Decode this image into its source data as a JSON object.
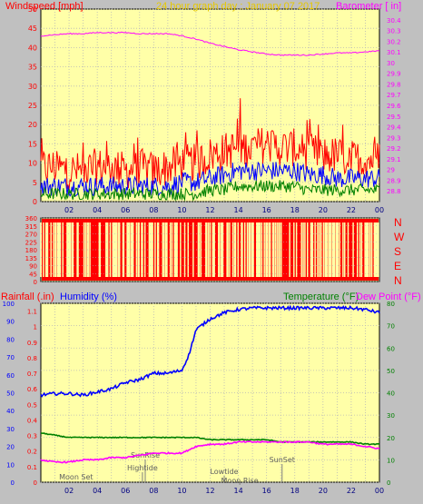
{
  "header": {
    "left_label": "Windspeed [mph]",
    "title": "24 hour graph day : January 07 2017",
    "right_label": "Barometer [ in]",
    "left_color": "#ff0000",
    "title_color": "#ffd800",
    "right_color": "#ff00ff"
  },
  "compass_labels": [
    "N",
    "W",
    "S",
    "E",
    "N"
  ],
  "bottom_header": {
    "rainfall_label": "Rainfall (.in)",
    "humidity_label": "Humidity (%)",
    "temperature_label": "Temperature (°F)",
    "dewpoint_label": "Dew Point (°F)"
  },
  "chart_data": [
    {
      "type": "line",
      "title": "24 hour graph day : January 07 2017",
      "x_ticks": [
        "02",
        "04",
        "06",
        "08",
        "10",
        "12",
        "14",
        "16",
        "18",
        "20",
        "22",
        "00"
      ],
      "x_range": [
        0,
        24
      ],
      "y_left": {
        "label": "Windspeed [mph]",
        "range": [
          0,
          50
        ],
        "ticks": [
          0,
          5,
          10,
          15,
          20,
          25,
          30,
          35,
          40,
          45,
          50
        ]
      },
      "y_right": {
        "label": "Barometer [ in]",
        "range": [
          28.7,
          30.5
        ],
        "ticks": [
          "28.8",
          "28.9",
          "29",
          "29.1",
          "29.2",
          "29.3",
          "29.4",
          "29.5",
          "29.6",
          "29.7",
          "29.8",
          "29.9",
          "30",
          "30.1",
          "30.2",
          "30.3",
          "30.4"
        ]
      },
      "series": [
        {
          "name": "Barometer [ in]",
          "color": "#ff00ff",
          "axis": "right",
          "x": [
            0,
            1,
            2,
            3,
            4,
            5,
            6,
            7,
            8,
            9,
            10,
            11,
            12,
            13,
            14,
            15,
            16,
            17,
            18,
            19,
            20,
            21,
            22,
            23,
            24
          ],
          "values": [
            30.25,
            30.26,
            30.27,
            30.27,
            30.28,
            30.28,
            30.28,
            30.27,
            30.27,
            30.27,
            30.25,
            30.22,
            30.18,
            30.15,
            30.12,
            30.1,
            30.08,
            30.07,
            30.07,
            30.07,
            30.08,
            30.09,
            30.09,
            30.1,
            30.11
          ]
        },
        {
          "color": "#ff0000",
          "axis": "left",
          "style": "gust",
          "x": [
            0,
            1,
            2,
            3,
            4,
            5,
            6,
            7,
            8,
            9,
            10,
            11,
            12,
            13,
            14,
            15,
            16,
            17,
            18,
            19,
            20,
            21,
            22,
            23,
            24
          ],
          "values": [
            9,
            9,
            8,
            8,
            9,
            9,
            8,
            9,
            8,
            9,
            10,
            10,
            12,
            13,
            14,
            14,
            15,
            14,
            14,
            13,
            12,
            12,
            11,
            11,
            11
          ]
        },
        {
          "color": "#0000ff",
          "axis": "left",
          "style": "avg",
          "x": [
            0,
            1,
            2,
            3,
            4,
            5,
            6,
            7,
            8,
            9,
            10,
            11,
            12,
            13,
            14,
            15,
            16,
            17,
            18,
            19,
            20,
            21,
            22,
            23,
            24
          ],
          "values": [
            4,
            4,
            4,
            4,
            4,
            4,
            4,
            4,
            4,
            4,
            5,
            5,
            6,
            7,
            8,
            8,
            8,
            8,
            8,
            7,
            7,
            6,
            6,
            6,
            6
          ]
        },
        {
          "color": "#008000",
          "axis": "left",
          "style": "low",
          "x": [
            0,
            1,
            2,
            3,
            4,
            5,
            6,
            7,
            8,
            9,
            10,
            11,
            12,
            13,
            14,
            15,
            16,
            17,
            18,
            19,
            20,
            21,
            22,
            23,
            24
          ],
          "values": [
            2,
            2,
            2,
            2,
            2,
            2,
            2,
            2,
            2,
            2,
            2,
            2,
            3,
            3,
            4,
            4,
            4,
            4,
            4,
            3,
            3,
            3,
            3,
            3,
            3
          ]
        }
      ]
    },
    {
      "type": "bar",
      "x_range": [
        0,
        24
      ],
      "y_left": {
        "range": [
          0,
          360
        ],
        "ticks": [
          0,
          45,
          90,
          135,
          180,
          225,
          270,
          315,
          360
        ]
      },
      "series": [
        {
          "color": "#ff0000",
          "note": "wind direction"
        }
      ]
    },
    {
      "type": "line",
      "x_ticks": [
        "02",
        "04",
        "06",
        "08",
        "10",
        "12",
        "14",
        "16",
        "18",
        "20",
        "22",
        "00"
      ],
      "x_range": [
        0,
        24
      ],
      "y_left_rain": {
        "label": "Rainfall (.in)",
        "range": [
          0,
          1
        ],
        "ticks": [
          0,
          10,
          20,
          30,
          40,
          50,
          60,
          70,
          80,
          90,
          100
        ]
      },
      "y_left_humidity": {
        "label": "Humidity (%)",
        "range": [
          0,
          1.15
        ],
        "ticks": [
          "0",
          "0.1",
          "0.2",
          "0.3",
          "0.4",
          "0.5",
          "0.6",
          "0.7",
          "0.8",
          "0.9",
          "1",
          "1.1"
        ]
      },
      "y_right": {
        "label": "Temperature (°F)",
        "range": [
          0,
          80
        ],
        "ticks": [
          0,
          10,
          20,
          30,
          40,
          50,
          60,
          70,
          80
        ]
      },
      "annotations": [
        {
          "text": "SunRise",
          "x": 7.4
        },
        {
          "text": "Hightide",
          "x": 7.2
        },
        {
          "text": "Moon Set",
          "x": 2.5
        },
        {
          "text": "Lowtide",
          "x": 13.0
        },
        {
          "text": "Moon Rise",
          "x": 14.1
        },
        {
          "text": "SunSet",
          "x": 17.1
        }
      ],
      "series": [
        {
          "name": "Humidity (%)",
          "color": "#0000ff",
          "axis": "humidity",
          "x": [
            0,
            1,
            2,
            3,
            4,
            5,
            6,
            7,
            8,
            9,
            10,
            10.5,
            11,
            12,
            13,
            14,
            15,
            16,
            17,
            18,
            19,
            20,
            21,
            22,
            23,
            24
          ],
          "values": [
            0.56,
            0.57,
            0.57,
            0.56,
            0.58,
            0.6,
            0.64,
            0.66,
            0.7,
            0.7,
            0.72,
            0.82,
            0.98,
            1.05,
            1.09,
            1.11,
            1.12,
            1.12,
            1.12,
            1.12,
            1.12,
            1.12,
            1.12,
            1.12,
            1.11,
            1.09
          ]
        },
        {
          "name": "Temperature (°F)",
          "color": "#008000",
          "axis": "right",
          "x": [
            0,
            1,
            2,
            3,
            4,
            5,
            6,
            7,
            8,
            9,
            10,
            11,
            12,
            13,
            14,
            15,
            16,
            17,
            18,
            19,
            20,
            21,
            22,
            23,
            24
          ],
          "values": [
            22,
            21,
            20,
            20,
            20,
            20,
            20,
            20,
            20,
            20,
            20,
            20,
            19,
            19,
            19,
            19,
            19,
            18,
            18,
            18,
            18,
            18,
            18,
            17,
            17
          ]
        },
        {
          "name": "Dew Point (°F)",
          "color": "#ff00ff",
          "axis": "right",
          "x": [
            0,
            1,
            2,
            3,
            4,
            5,
            6,
            7,
            8,
            9,
            10,
            11,
            12,
            13,
            14,
            15,
            16,
            17,
            18,
            19,
            20,
            21,
            22,
            23,
            24
          ],
          "values": [
            10,
            9,
            9,
            10,
            10,
            11,
            11,
            12,
            13,
            13,
            13,
            16,
            17,
            17,
            18,
            18,
            18,
            18,
            18,
            18,
            17,
            17,
            17,
            16,
            15
          ]
        }
      ]
    }
  ]
}
